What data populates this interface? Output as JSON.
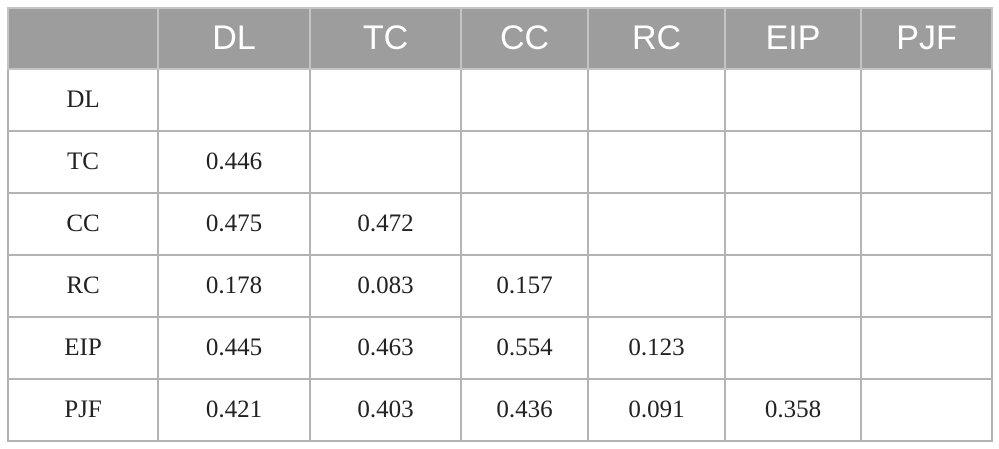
{
  "table": {
    "columns": [
      "DL",
      "TC",
      "CC",
      "RC",
      "EIP",
      "PJF"
    ],
    "rows": [
      [
        "DL",
        null,
        null,
        null,
        null,
        null,
        null
      ],
      [
        "TC",
        "0.446",
        null,
        null,
        null,
        null,
        null
      ],
      [
        "CC",
        "0.475",
        "0.472",
        null,
        null,
        null,
        null
      ],
      [
        "RC",
        "0.178",
        "0.083",
        "0.157",
        null,
        null,
        null
      ],
      [
        "EIP",
        "0.445",
        "0.463",
        "0.554",
        "0.123",
        null,
        null
      ],
      [
        "PJF",
        "0.421",
        "0.403",
        "0.436",
        "0.091",
        "0.358",
        null
      ]
    ]
  }
}
